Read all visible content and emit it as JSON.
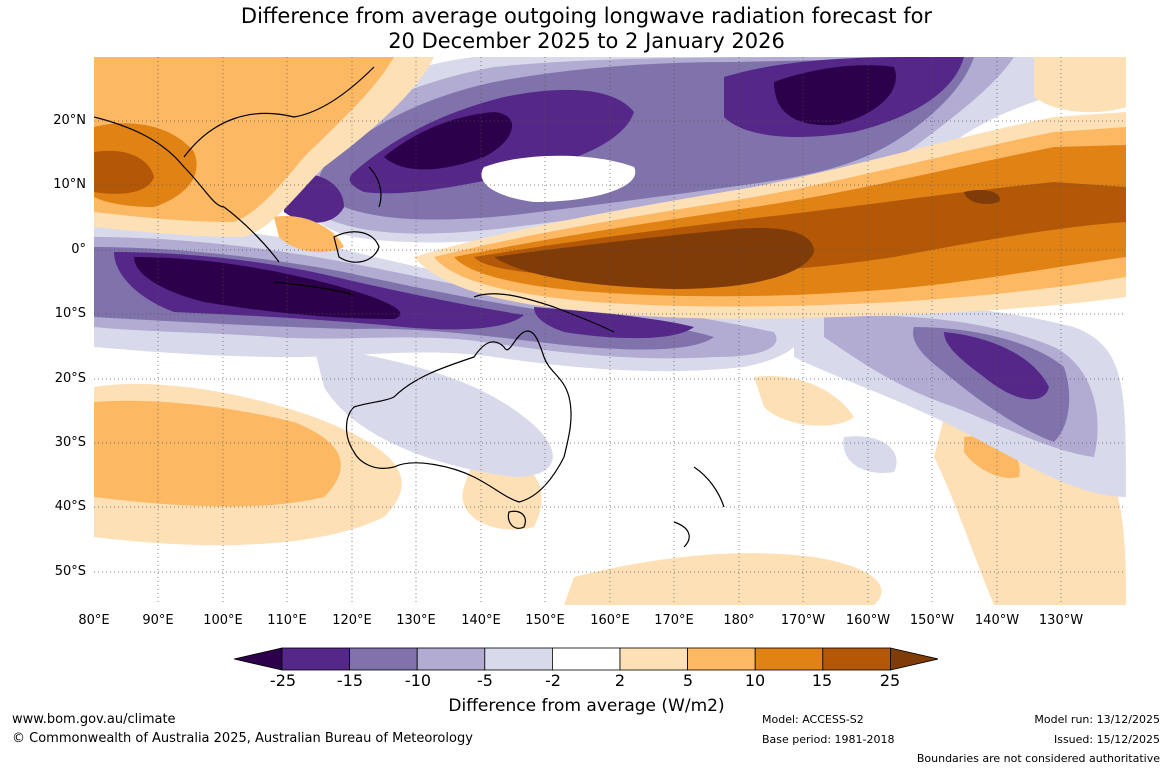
{
  "title_line1": "Difference from average outgoing longwave radiation forecast for",
  "title_line2": "20 December 2025 to 2 January 2026",
  "chart_data": {
    "type": "heatmap",
    "variable": "Outgoing longwave radiation anomaly",
    "units": "W/m2",
    "lon_labels": [
      "80°E",
      "90°E",
      "100°E",
      "110°E",
      "120°E",
      "130°E",
      "140°E",
      "150°E",
      "160°E",
      "170°E",
      "180°",
      "170°W",
      "160°W",
      "150°W",
      "140°W",
      "130°W"
    ],
    "lat_labels": [
      "20°N",
      "10°N",
      "0°",
      "10°S",
      "20°S",
      "30°S",
      "40°S",
      "50°S"
    ],
    "legend_levels": [
      "-25",
      "-15",
      "-10",
      "-5",
      "-2",
      "2",
      "5",
      "10",
      "15",
      "25"
    ],
    "legend_colors": [
      "#2d004b",
      "#542788",
      "#8073ac",
      "#b2abd2",
      "#d8daeb",
      "#ffffff",
      "#fee0b6",
      "#fdb863",
      "#e08214",
      "#b35806",
      "#7f3b08"
    ],
    "legend_title": "Difference from average (W/m2)"
  },
  "footer": {
    "site": "www.bom.gov.au/climate",
    "copyright": "© Commonwealth of Australia 2025, Australian Bureau of Meteorology",
    "model": "Model: ACCESS-S2",
    "base_period": "Base period: 1981-2018",
    "model_run": "Model run: 13/12/2025",
    "issued": "Issued: 15/12/2025",
    "disclaimer": "Boundaries are not considered authoritative"
  }
}
